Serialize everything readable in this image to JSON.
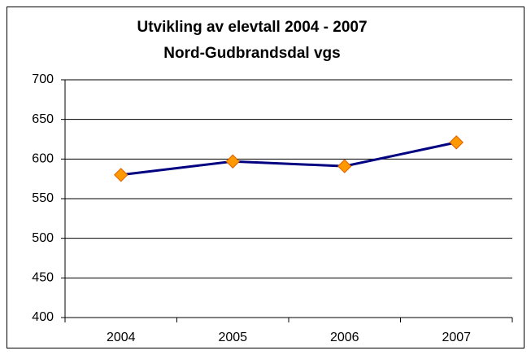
{
  "chart_data": {
    "type": "line",
    "title": "Utvikling av elevtall 2004 - 2007",
    "subtitle": "Nord-Gudbrandsdal vgs",
    "categories": [
      "2004",
      "2005",
      "2006",
      "2007"
    ],
    "series": [
      {
        "color": "#000080",
        "marker_color": "#ff9900",
        "values": [
          580,
          597,
          591,
          621
        ]
      }
    ],
    "ylim": [
      400,
      700
    ],
    "yticks": [
      400,
      450,
      500,
      550,
      600,
      650,
      700
    ],
    "grid": true
  }
}
